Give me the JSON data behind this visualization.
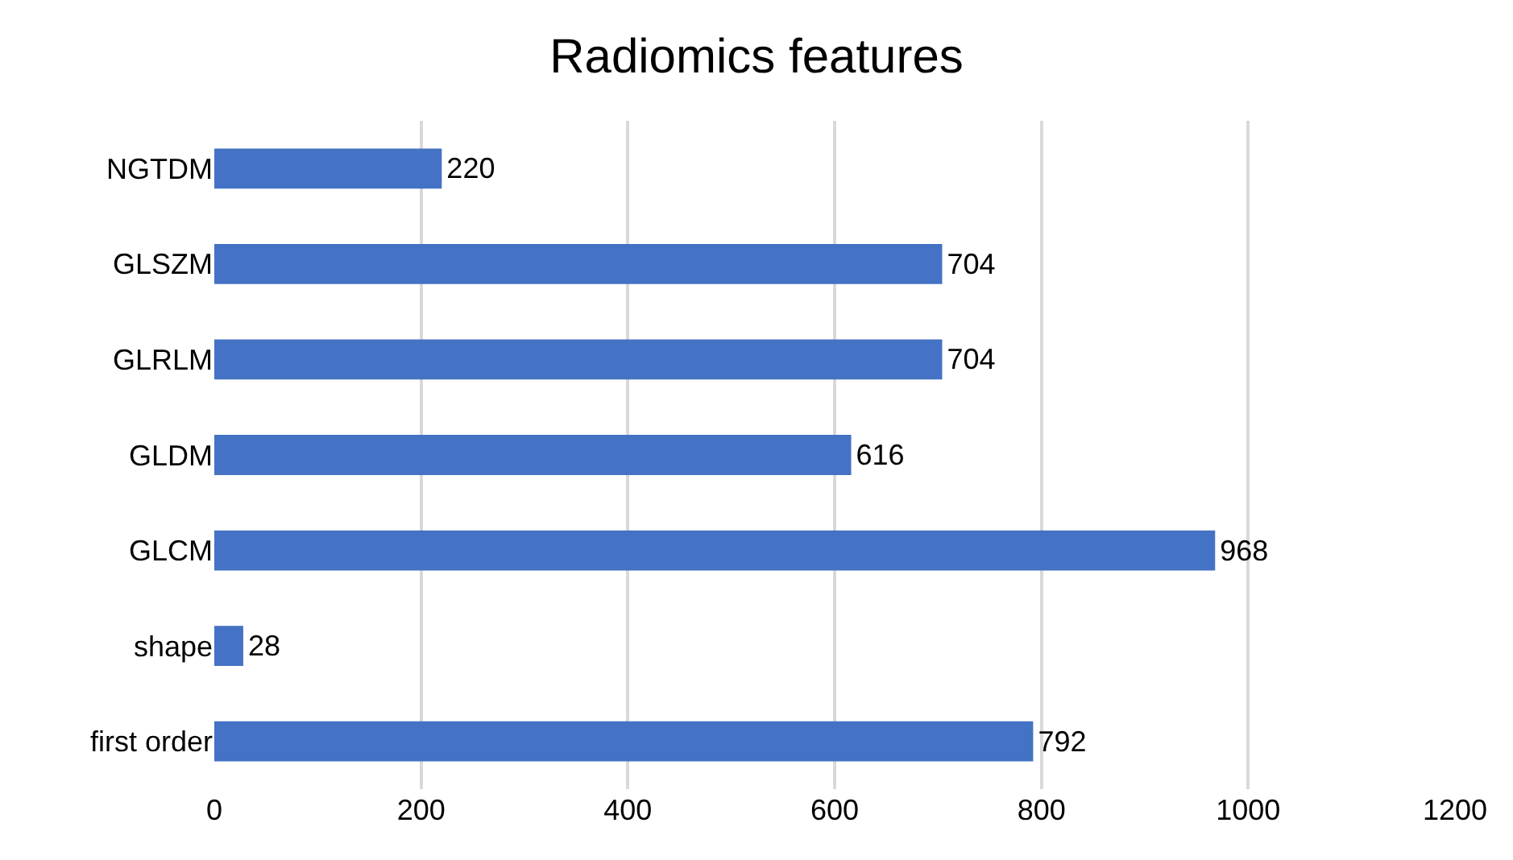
{
  "chart_data": {
    "type": "bar",
    "orientation": "horizontal",
    "title": "Radiomics features",
    "categories": [
      "NGTDM",
      "GLSZM",
      "GLRLM",
      "GLDM",
      "GLCM",
      "shape",
      "first order"
    ],
    "values": [
      220,
      704,
      704,
      616,
      968,
      28,
      792
    ],
    "color": "#4472c4",
    "xlim": [
      0,
      1200
    ],
    "xticks": [
      0,
      200,
      400,
      600,
      800,
      1000,
      1200
    ],
    "grid": "x",
    "data_labels": true
  }
}
